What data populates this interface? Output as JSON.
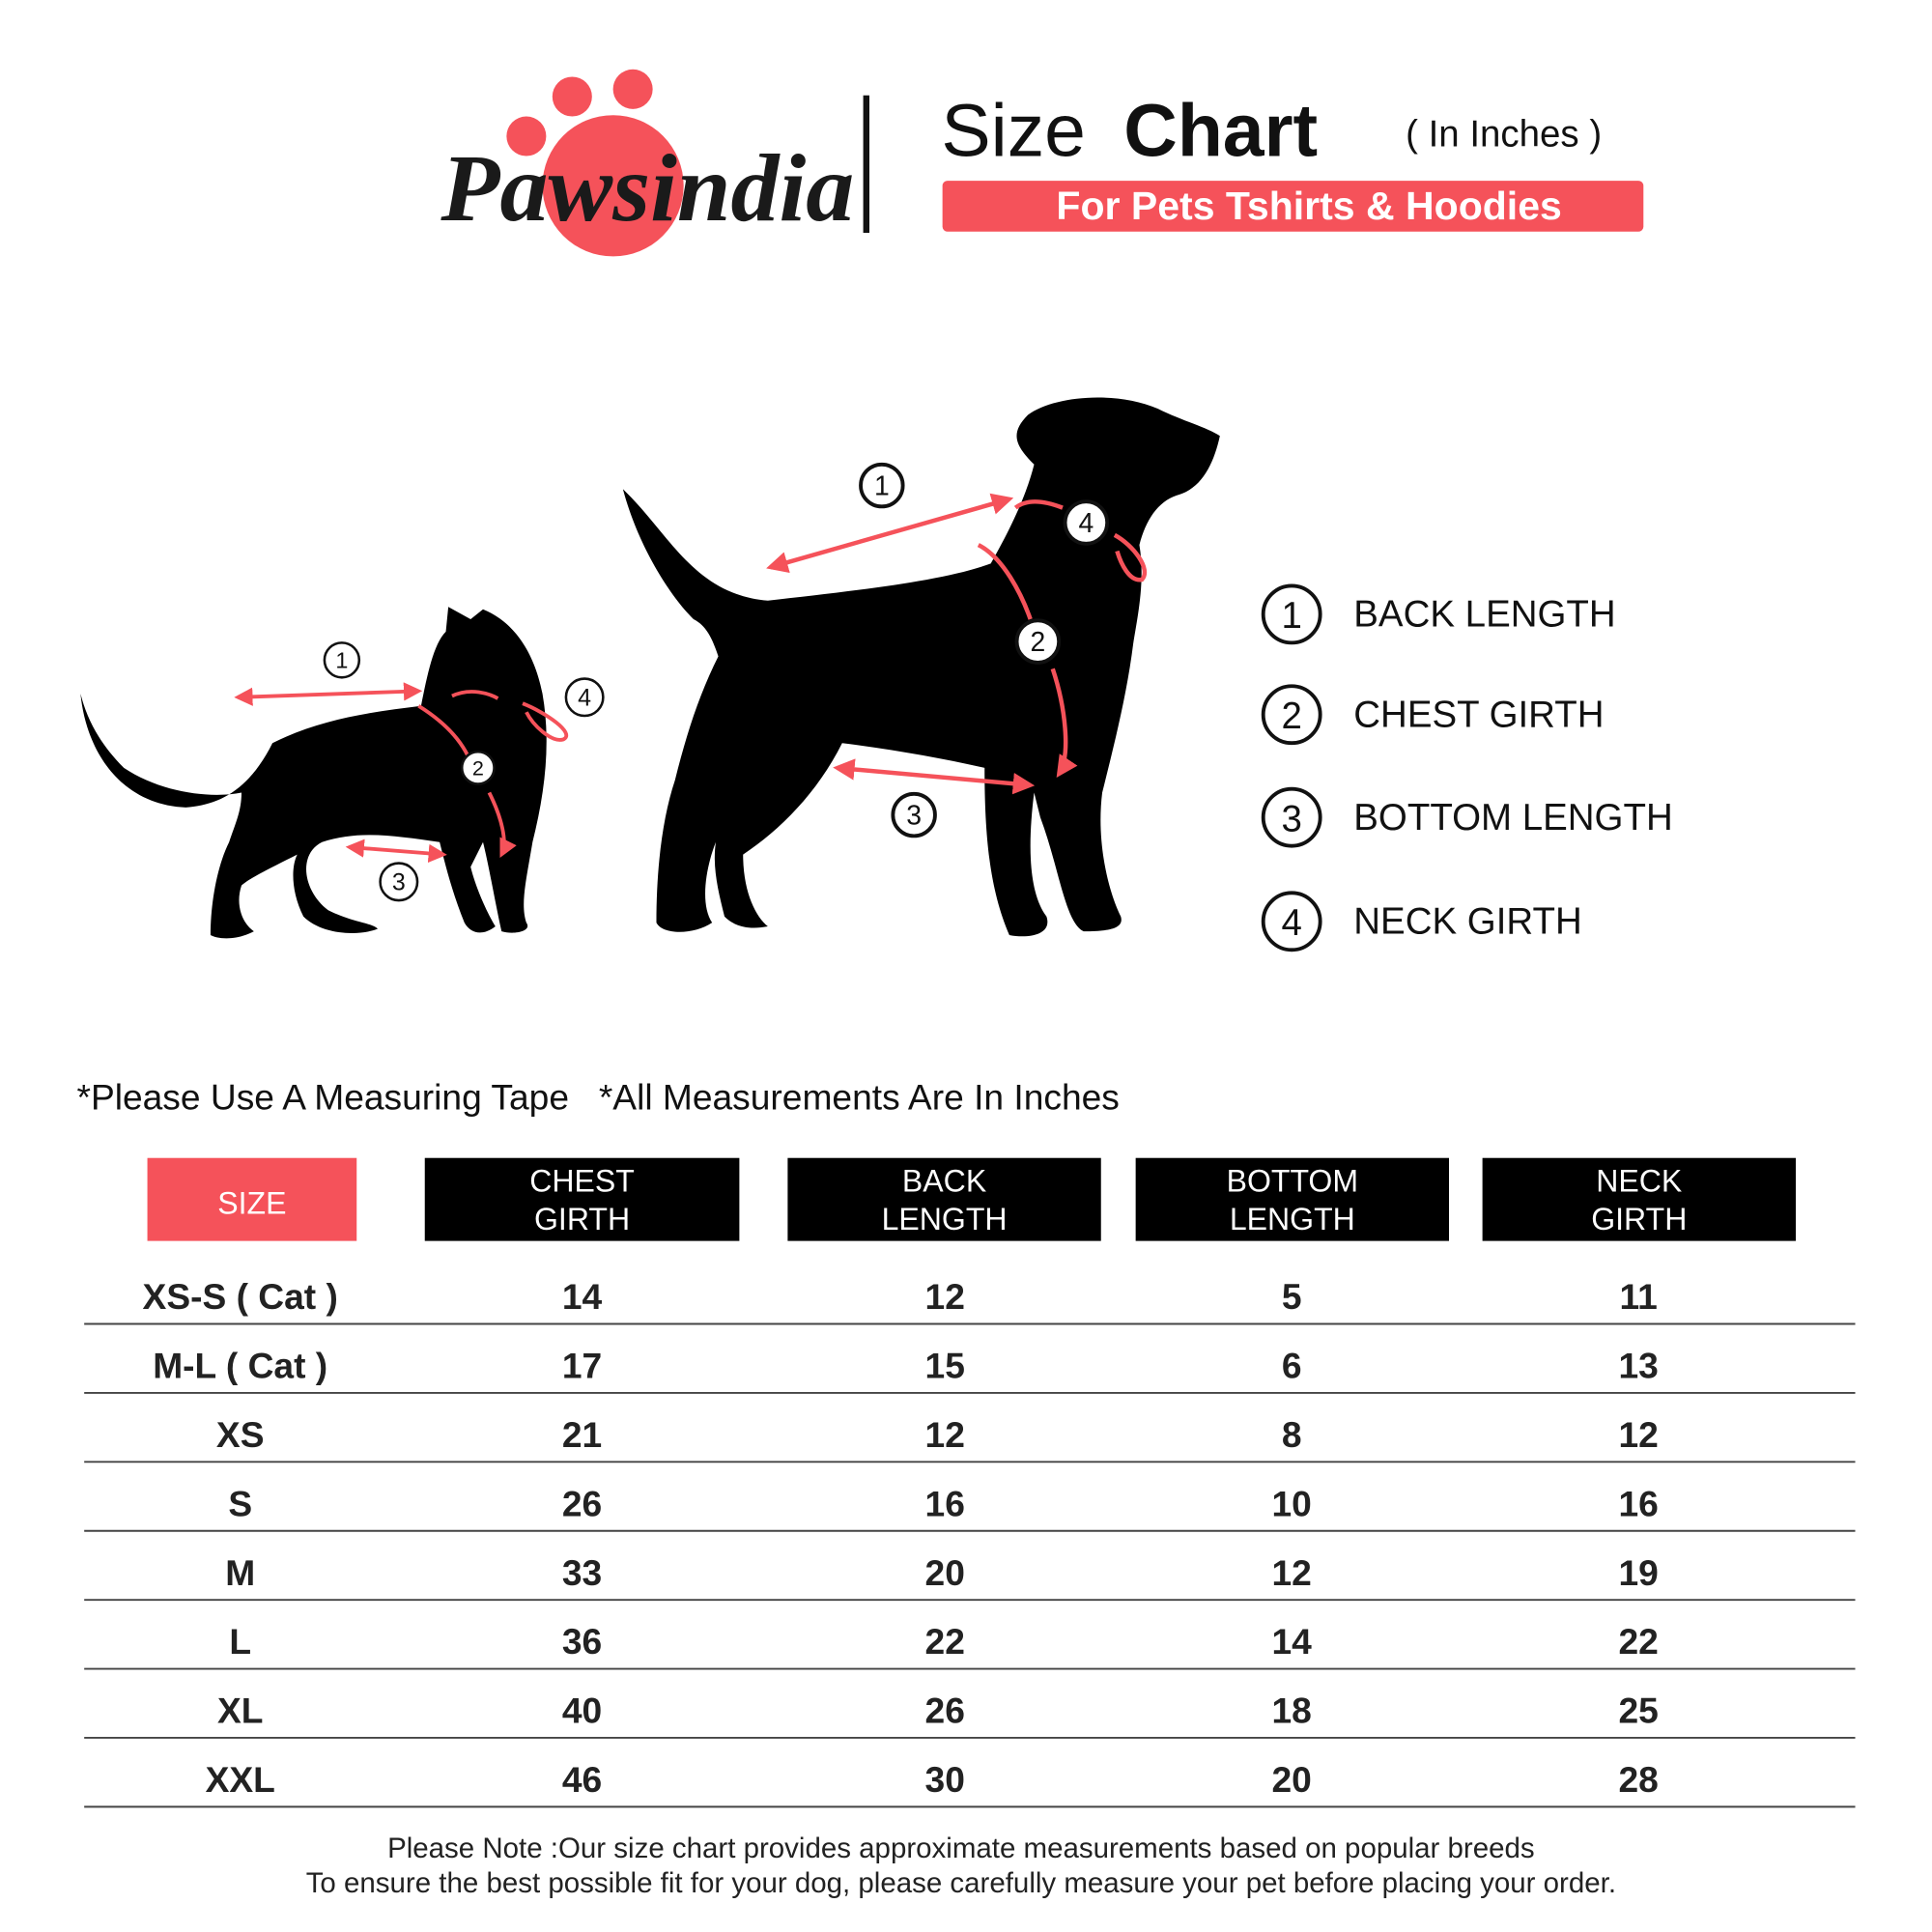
{
  "brand": {
    "name": "Pawsindia",
    "accent": "#f5525a"
  },
  "header": {
    "title_light": "Size",
    "title_bold": "Chart",
    "unit": "( In Inches )",
    "subtitle": "For Pets Tshirts & Hoodies"
  },
  "legend": [
    {
      "num": "1",
      "label": "BACK LENGTH"
    },
    {
      "num": "2",
      "label": "CHEST GIRTH"
    },
    {
      "num": "3",
      "label": "BOTTOM LENGTH"
    },
    {
      "num": "4",
      "label": "NECK GIRTH"
    }
  ],
  "notes": {
    "tape": "*Please Use A Measuring Tape",
    "inches": "*All Measurements Are In Inches"
  },
  "table": {
    "headers": [
      [
        "SIZE"
      ],
      [
        "CHEST",
        "GIRTH"
      ],
      [
        "BACK",
        "LENGTH"
      ],
      [
        "BOTTOM",
        "LENGTH"
      ],
      [
        "NECK",
        "GIRTH"
      ]
    ],
    "rows": [
      [
        "XS-S ( Cat )",
        "14",
        "12",
        "5",
        "11"
      ],
      [
        "M-L ( Cat )",
        "17",
        "15",
        "6",
        "13"
      ],
      [
        "XS",
        "21",
        "12",
        "8",
        "12"
      ],
      [
        "S",
        "26",
        "16",
        "10",
        "16"
      ],
      [
        "M",
        "33",
        "20",
        "12",
        "19"
      ],
      [
        "L",
        "36",
        "22",
        "14",
        "22"
      ],
      [
        "XL",
        "40",
        "26",
        "18",
        "25"
      ],
      [
        "XXL",
        "46",
        "30",
        "20",
        "28"
      ]
    ]
  },
  "footer": {
    "line1": "Please Note :Our size chart provides approximate measurements based on popular breeds",
    "line2": "To ensure the best possible fit for your dog, please carefully measure your pet before placing your order."
  }
}
